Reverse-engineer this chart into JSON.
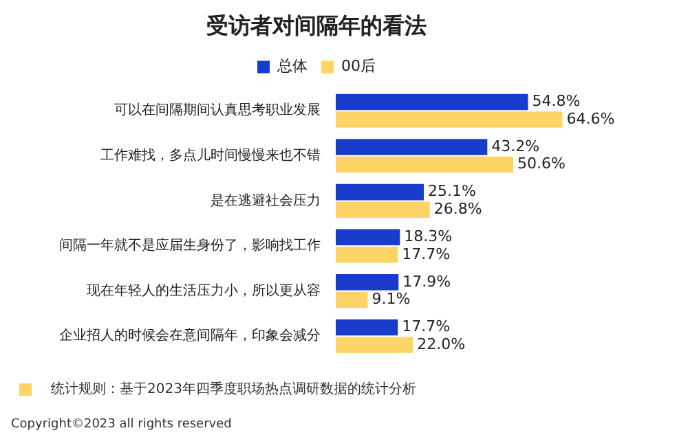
{
  "chart_data": {
    "type": "bar",
    "orientation": "horizontal",
    "title": "受访者对间隔年的看法",
    "categories": [
      "可以在间隔期间认真思考职业发展",
      "工作难找，多点儿时间慢慢来也不错",
      "是在逃避社会压力",
      "间隔一年就不是应届生身份了，影响找工作",
      "现在年轻人的生活压力小，所以更从容",
      "企业招人的时候会在意间隔年，印象会减分"
    ],
    "series": [
      {
        "name": "总体",
        "color": "#1a3ccc",
        "values": [
          54.8,
          43.2,
          25.1,
          18.3,
          17.9,
          17.7
        ],
        "value_labels": [
          "54.8%",
          "43.2%",
          "25.1%",
          "18.3%",
          "17.9%",
          "17.7%"
        ]
      },
      {
        "name": "00后",
        "color": "#fdd466",
        "values": [
          64.6,
          50.6,
          26.8,
          17.7,
          9.1,
          22.0
        ],
        "value_labels": [
          "64.6%",
          "50.6%",
          "26.8%",
          "17.7%",
          "9.1%",
          "22.0%"
        ]
      }
    ],
    "grid": false,
    "legend": "top",
    "tick_labels": "y",
    "annotations": [
      "统计规则：基于2023年四季度职场热点调研数据的统计分析",
      "Copyright©2023 all rights reserved"
    ]
  }
}
